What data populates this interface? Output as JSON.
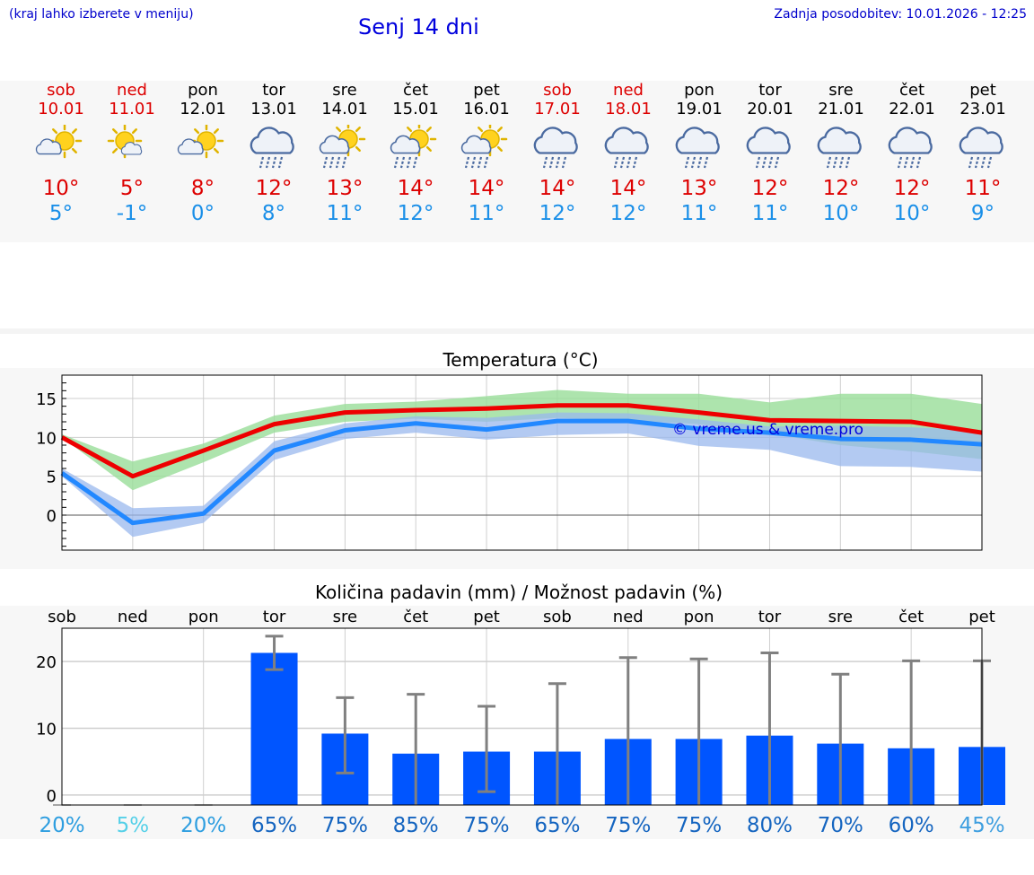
{
  "header": {
    "hint": "(kraj lahko izberete v meniju)",
    "title": "Senj 14 dni",
    "updated": "Zadnja posodobitev: 10.01.2026 - 12:25"
  },
  "days": [
    {
      "name": "sob",
      "date": "10.01",
      "weekend": true,
      "icon": "sun-cloud-icon",
      "max": "10°",
      "min": "5°"
    },
    {
      "name": "ned",
      "date": "11.01",
      "weekend": true,
      "icon": "sun-small-cloud-icon",
      "max": "5°",
      "min": "-1°"
    },
    {
      "name": "pon",
      "date": "12.01",
      "weekend": false,
      "icon": "sun-cloud-icon",
      "max": "8°",
      "min": "0°"
    },
    {
      "name": "tor",
      "date": "13.01",
      "weekend": false,
      "icon": "rain-cloud-icon",
      "max": "12°",
      "min": "8°"
    },
    {
      "name": "sre",
      "date": "14.01",
      "weekend": false,
      "icon": "sun-rain-icon",
      "max": "13°",
      "min": "11°"
    },
    {
      "name": "čet",
      "date": "15.01",
      "weekend": false,
      "icon": "sun-rain-icon",
      "max": "14°",
      "min": "12°"
    },
    {
      "name": "pet",
      "date": "16.01",
      "weekend": false,
      "icon": "sun-rain-icon",
      "max": "14°",
      "min": "11°"
    },
    {
      "name": "sob",
      "date": "17.01",
      "weekend": true,
      "icon": "rain-cloud-icon",
      "max": "14°",
      "min": "12°"
    },
    {
      "name": "ned",
      "date": "18.01",
      "weekend": true,
      "icon": "rain-cloud-icon",
      "max": "14°",
      "min": "12°"
    },
    {
      "name": "pon",
      "date": "19.01",
      "weekend": false,
      "icon": "rain-cloud-icon",
      "max": "13°",
      "min": "11°"
    },
    {
      "name": "tor",
      "date": "20.01",
      "weekend": false,
      "icon": "rain-cloud-icon",
      "max": "12°",
      "min": "11°"
    },
    {
      "name": "sre",
      "date": "21.01",
      "weekend": false,
      "icon": "rain-cloud-icon",
      "max": "12°",
      "min": "10°"
    },
    {
      "name": "čet",
      "date": "22.01",
      "weekend": false,
      "icon": "rain-cloud-icon",
      "max": "12°",
      "min": "10°"
    },
    {
      "name": "pet",
      "date": "23.01",
      "weekend": false,
      "icon": "rain-cloud-icon",
      "max": "11°",
      "min": "9°"
    }
  ],
  "colors": {
    "weekend": "#dd0000",
    "weekday": "#000000",
    "max_line": "#ee0000",
    "min_line": "#2288ff",
    "max_band": "#99dd99",
    "min_band": "#99b8ee",
    "bar": "#0055ff",
    "errorbar": "#808080"
  },
  "chart_data": [
    {
      "type": "line",
      "title": "Temperatura (°C)",
      "watermark": "© vreme.us & vreme.pro",
      "x": [
        0,
        1,
        2,
        3,
        4,
        5,
        6,
        7,
        8,
        9,
        10,
        11,
        12,
        13
      ],
      "ylim": [
        -4.5,
        18
      ],
      "yticks": [
        0,
        5,
        10,
        15
      ],
      "grid": true,
      "series": [
        {
          "name": "max",
          "values": [
            10,
            5,
            8.3,
            11.7,
            13.2,
            13.5,
            13.7,
            14.1,
            14.1,
            13.2,
            12.2,
            12.1,
            12,
            10.6
          ],
          "band_low": [
            10,
            3.2,
            6.8,
            10.6,
            12,
            12.4,
            12,
            12.5,
            12.2,
            11.7,
            10.5,
            9,
            8.2,
            7.2
          ],
          "band_high": [
            10.4,
            6.9,
            9.2,
            12.8,
            14.3,
            14.6,
            15.3,
            16.1,
            15.6,
            15.6,
            14.5,
            15.6,
            15.6,
            14.3
          ]
        },
        {
          "name": "min",
          "values": [
            5.4,
            -1,
            0.2,
            8.3,
            10.9,
            11.8,
            11,
            12.1,
            12.1,
            11.1,
            10.6,
            9.8,
            9.7,
            9.1
          ],
          "band_low": [
            5,
            -2.8,
            -1,
            7.1,
            9.8,
            10.6,
            9.7,
            10.3,
            10.5,
            8.9,
            8.4,
            6.3,
            6.2,
            5.6
          ],
          "band_high": [
            6,
            0.9,
            1.2,
            9.5,
            11.8,
            12.7,
            12.5,
            13.2,
            13.1,
            12.3,
            11.4,
            11.5,
            11.3,
            10.9
          ]
        }
      ]
    },
    {
      "type": "bar",
      "title": "Količina padavin (mm) / Možnost padavin (%)",
      "categories": [
        "sob",
        "ned",
        "pon",
        "tor",
        "sre",
        "čet",
        "pet",
        "sob",
        "ned",
        "pon",
        "tor",
        "sre",
        "čet",
        "pet"
      ],
      "values": [
        0,
        0,
        0,
        21.3,
        9.2,
        6.2,
        6.5,
        6.5,
        8.4,
        8.4,
        8.9,
        7.7,
        7,
        7.2
      ],
      "error_low": [
        0,
        0,
        0,
        18.8,
        3.3,
        0,
        0.5,
        0,
        0,
        0,
        0,
        0,
        0,
        0
      ],
      "error_high": [
        0,
        0,
        0,
        23.8,
        14.6,
        15.1,
        13.3,
        16.7,
        20.6,
        20.4,
        21.3,
        18.1,
        20.1,
        20.1
      ],
      "probability": [
        "20%",
        "5%",
        "20%",
        "65%",
        "75%",
        "85%",
        "75%",
        "65%",
        "75%",
        "75%",
        "80%",
        "70%",
        "60%",
        "45%"
      ],
      "probability_colors": [
        "#2e9ee0",
        "#55d0e8",
        "#2e9ee0",
        "#1565c0",
        "#1565c0",
        "#1565c0",
        "#1565c0",
        "#1565c0",
        "#1565c0",
        "#1565c0",
        "#1565c0",
        "#1565c0",
        "#1565c0",
        "#3f9fe0"
      ],
      "ylim": [
        -1.5,
        25
      ],
      "yticks": [
        0,
        10,
        20
      ],
      "grid": true
    }
  ]
}
